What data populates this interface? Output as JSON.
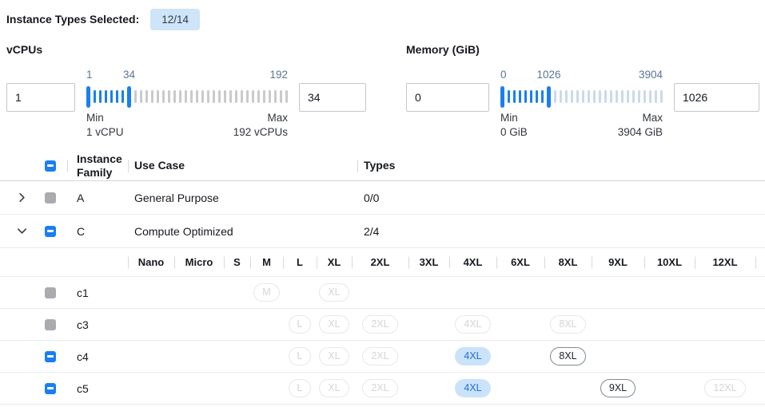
{
  "header": {
    "label": "Instance Types Selected:",
    "badge": "12/14"
  },
  "filters": [
    {
      "title": "vCPUs",
      "min_value": "1",
      "max_value": "34",
      "slider": {
        "labels": {
          "start": "1",
          "mid": "34",
          "end": "192"
        },
        "selected_ticks": 6,
        "unselected_ticks": 28,
        "min_caption": "Min",
        "min_detail": "1 vCPU",
        "max_caption": "Max",
        "max_detail": "192 vCPUs"
      }
    },
    {
      "title": "Memory (GiB)",
      "min_value": "0",
      "max_value": "1026",
      "slider": {
        "labels": {
          "start": "0",
          "mid": "1026",
          "end": "3904"
        },
        "selected_ticks": 7,
        "unselected_ticks": 20,
        "min_caption": "Min",
        "min_detail": "0 GiB",
        "max_caption": "Max",
        "max_detail": "3904 GiB"
      }
    }
  ],
  "table": {
    "headers": {
      "family": "Instance Family",
      "use_case": "Use Case",
      "types": "Types"
    },
    "family_rows": [
      {
        "expanded": false,
        "checkbox": "disabled",
        "family": "A",
        "use_case": "General Purpose",
        "types": "0/0"
      },
      {
        "expanded": true,
        "checkbox": "indeterminate",
        "family": "C",
        "use_case": "Compute Optimized",
        "types": "2/4"
      }
    ],
    "sizes": [
      "Nano",
      "Micro",
      "S",
      "M",
      "L",
      "XL",
      "2XL",
      "3XL",
      "4XL",
      "6XL",
      "8XL",
      "9XL",
      "10XL",
      "12XL"
    ],
    "type_rows": [
      {
        "checkbox": "disabled",
        "name": "c1",
        "badges": [
          {
            "size": "M",
            "state": "disabled"
          },
          {
            "size": "XL",
            "state": "disabled"
          }
        ]
      },
      {
        "checkbox": "disabled",
        "name": "c3",
        "badges": [
          {
            "size": "L",
            "state": "disabled"
          },
          {
            "size": "XL",
            "state": "disabled"
          },
          {
            "size": "2XL",
            "state": "disabled"
          },
          {
            "size": "4XL",
            "state": "disabled"
          },
          {
            "size": "8XL",
            "state": "disabled"
          }
        ]
      },
      {
        "checkbox": "indeterminate",
        "name": "c4",
        "badges": [
          {
            "size": "L",
            "state": "disabled"
          },
          {
            "size": "XL",
            "state": "disabled"
          },
          {
            "size": "2XL",
            "state": "disabled"
          },
          {
            "size": "4XL",
            "state": "selected"
          },
          {
            "size": "8XL",
            "state": "enabled"
          }
        ]
      },
      {
        "checkbox": "indeterminate",
        "name": "c5",
        "badges": [
          {
            "size": "L",
            "state": "disabled"
          },
          {
            "size": "XL",
            "state": "disabled"
          },
          {
            "size": "2XL",
            "state": "disabled"
          },
          {
            "size": "4XL",
            "state": "selected"
          },
          {
            "size": "9XL",
            "state": "enabled"
          },
          {
            "size": "12XL",
            "state": "disabled"
          }
        ]
      }
    ]
  },
  "colors": {
    "accent_blue": "#1a7ff0",
    "selected_badge_bg": "#cbe3fa",
    "selected_badge_text": "#1e6fd9",
    "vcpu_unselected_tick": "#c9cacd",
    "memory_unselected_tick": "#ccd9eb",
    "count_badge_bg": "#cde4f9"
  }
}
